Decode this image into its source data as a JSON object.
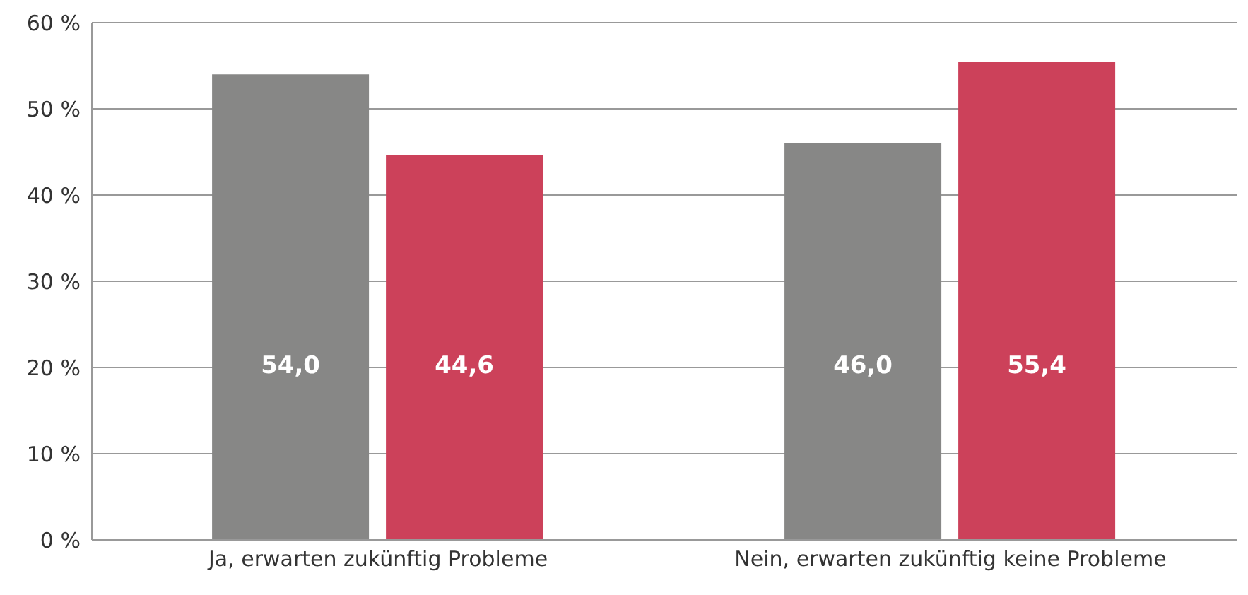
{
  "chart_data": {
    "type": "bar",
    "categories": [
      "Ja, erwarten zukünftig Probleme",
      "Nein, erwarten zukünftig keine Probleme"
    ],
    "series": [
      {
        "color": "#878786",
        "values": [
          54.0,
          46.0
        ],
        "value_labels": [
          "54,0",
          "46,0"
        ]
      },
      {
        "color": "#cc415a",
        "values": [
          44.6,
          55.4
        ],
        "value_labels": [
          "44,6",
          "55,4"
        ]
      }
    ],
    "ylim": [
      0,
      60
    ],
    "yticks": [
      {
        "value": 0,
        "label": "0 %"
      },
      {
        "value": 10,
        "label": "10 %"
      },
      {
        "value": 20,
        "label": "20 %"
      },
      {
        "value": 30,
        "label": "30 %"
      },
      {
        "value": 40,
        "label": "40 %"
      },
      {
        "value": 50,
        "label": "50 %"
      },
      {
        "value": 60,
        "label": "60 %"
      }
    ],
    "grid": "y"
  }
}
